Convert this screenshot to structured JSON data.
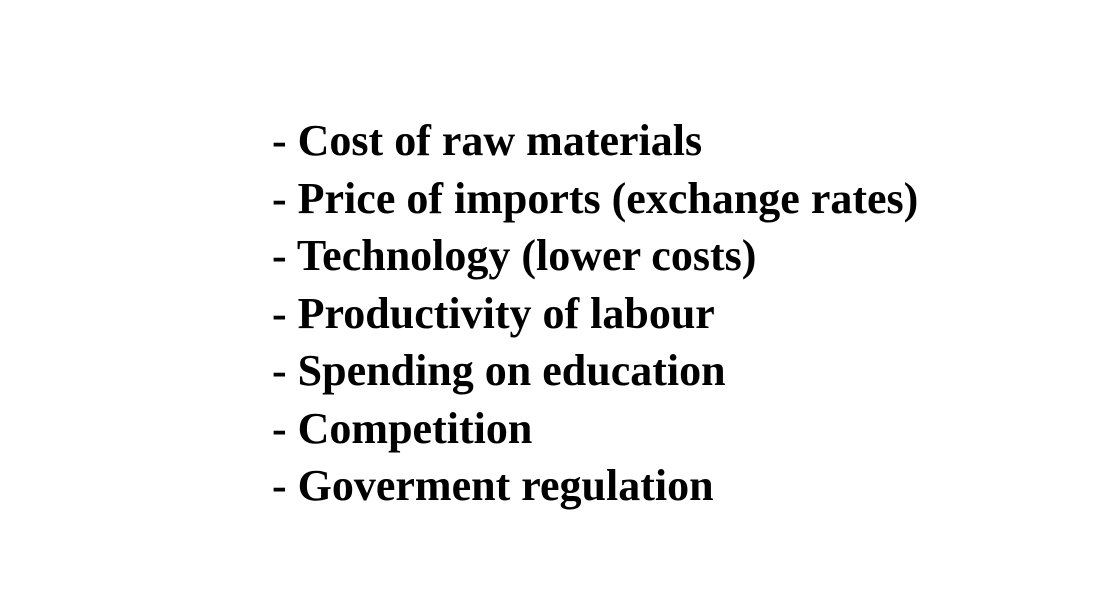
{
  "slide": {
    "text_color": "#000000",
    "background_color": "#ffffff",
    "items": [
      "- Cost of raw materials",
      "- Price of imports (exchange rates)",
      "- Technology (lower costs)",
      "- Productivity of labour",
      "- Spending on education",
      "- Competition",
      "- Goverment regulation"
    ]
  }
}
